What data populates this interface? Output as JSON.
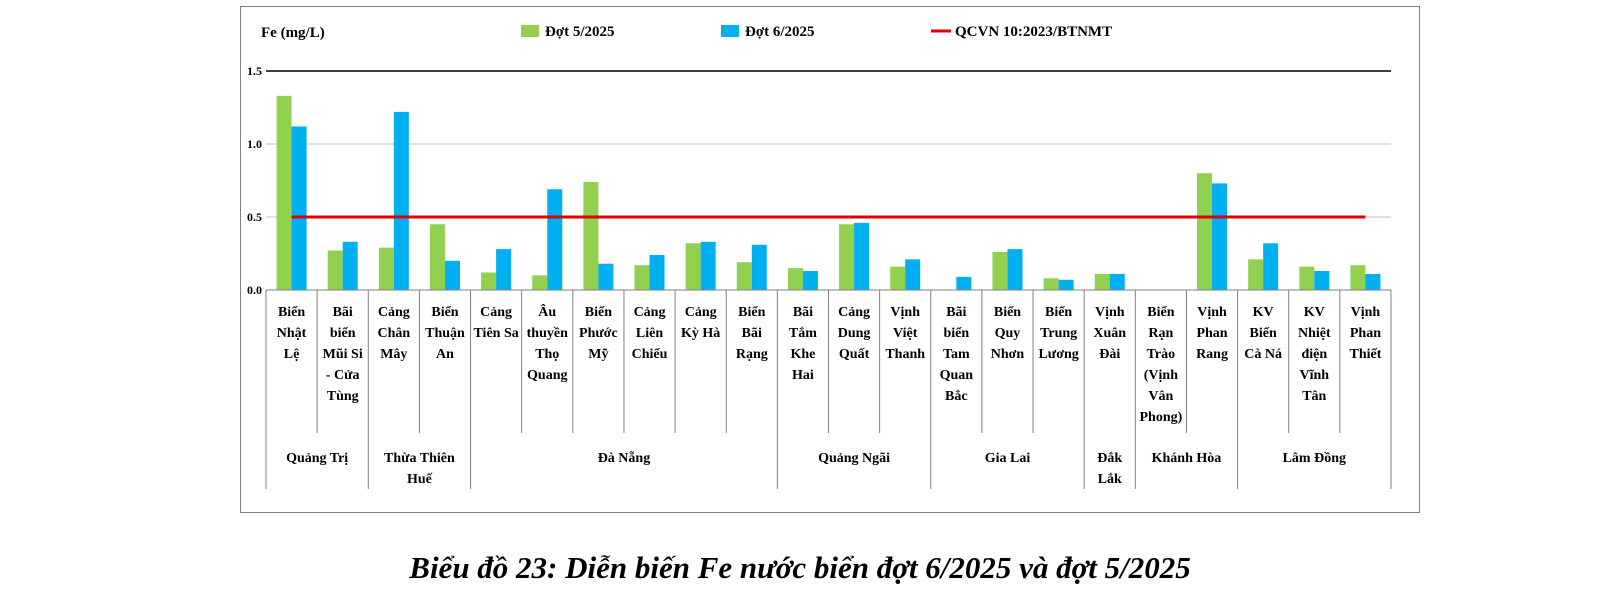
{
  "caption": "Biểu đồ 23: Diễn biến Fe nước biển đợt 6/2025 và đợt 5/2025",
  "chart_data": {
    "type": "bar",
    "y_unit_label": "Fe (mg/L)",
    "ylim": [
      0,
      1.5
    ],
    "y_ticks": [
      "0.0",
      "0.5",
      "1.0",
      "1.5"
    ],
    "grid": true,
    "legend_position": "top",
    "categories": [
      [
        "Biển",
        "Nhật",
        "Lệ"
      ],
      [
        "Bãi",
        "biển",
        "Mũi Si",
        "- Cửa",
        "Tùng"
      ],
      [
        "Cảng",
        "Chân",
        "Mây"
      ],
      [
        "Biển",
        "Thuận",
        "An"
      ],
      [
        "Cảng",
        "Tiên Sa"
      ],
      [
        "Âu",
        "thuyền",
        "Thọ",
        "Quang"
      ],
      [
        "Biển",
        "Phước",
        "Mỹ"
      ],
      [
        "Cảng",
        "Liên",
        "Chiểu"
      ],
      [
        "Cảng",
        "Kỳ Hà"
      ],
      [
        "Biển",
        "Bãi",
        "Rạng"
      ],
      [
        "Bãi",
        "Tắm",
        "Khe",
        "Hai"
      ],
      [
        "Cảng",
        "Dung",
        "Quất"
      ],
      [
        "Vịnh",
        "Việt",
        "Thanh"
      ],
      [
        "Bãi",
        "biển",
        "Tam",
        "Quan",
        "Bắc"
      ],
      [
        "Biển",
        "Quy",
        "Nhơn"
      ],
      [
        "Biển",
        "Trung",
        "Lương"
      ],
      [
        "Vịnh",
        "Xuân",
        "Đài"
      ],
      [
        "Biển",
        "Rạn",
        "Trào",
        "(Vịnh",
        "Vân",
        "Phong)"
      ],
      [
        "Vịnh",
        "Phan",
        "Rang"
      ],
      [
        "KV",
        "Biển",
        "Cà Ná"
      ],
      [
        "KV",
        "Nhiệt",
        "điện",
        "Vĩnh",
        "Tân"
      ],
      [
        "Vịnh",
        "Phan",
        "Thiết"
      ]
    ],
    "groups": [
      {
        "name": [
          "Quảng Trị"
        ],
        "start": 0,
        "end": 1
      },
      {
        "name": [
          "Thừa Thiên",
          "Huế"
        ],
        "start": 2,
        "end": 3
      },
      {
        "name": [
          "Đà Nẵng"
        ],
        "start": 4,
        "end": 9
      },
      {
        "name": [
          "Quảng Ngãi"
        ],
        "start": 10,
        "end": 12
      },
      {
        "name": [
          "Gia Lai"
        ],
        "start": 13,
        "end": 15
      },
      {
        "name": [
          "Đắk",
          "Lắk"
        ],
        "start": 16,
        "end": 16
      },
      {
        "name": [
          "Khánh Hòa"
        ],
        "start": 17,
        "end": 18
      },
      {
        "name": [
          "Lâm Đồng"
        ],
        "start": 19,
        "end": 21
      }
    ],
    "series": [
      {
        "name": "Đợt 5/2025",
        "color": "#92d050",
        "values": [
          1.33,
          0.27,
          0.29,
          0.45,
          0.12,
          0.1,
          0.74,
          0.17,
          0.32,
          0.19,
          0.15,
          0.45,
          0.16,
          null,
          0.26,
          0.08,
          0.11,
          null,
          0.8,
          0.21,
          0.16,
          0.17
        ]
      },
      {
        "name": "Đợt 6/2025",
        "color": "#00b0f0",
        "values": [
          1.12,
          0.33,
          1.22,
          0.2,
          0.28,
          0.69,
          0.18,
          0.24,
          0.33,
          0.31,
          0.13,
          0.46,
          0.21,
          0.09,
          0.28,
          0.07,
          0.11,
          null,
          0.73,
          0.32,
          0.13,
          0.11
        ]
      }
    ],
    "reference_line": {
      "name": "QCVN 10:2023/BTNMT",
      "value": 0.5,
      "color": "#e00000"
    }
  }
}
